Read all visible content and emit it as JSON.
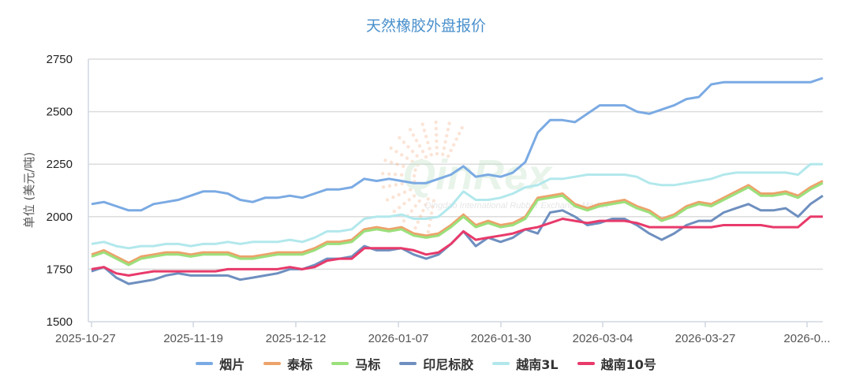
{
  "title": "天然橡胶外盘报价",
  "chart_data": {
    "type": "line",
    "title": "天然橡胶外盘报价",
    "xlabel": "",
    "ylabel": "单位 (美元/吨)",
    "ylim": [
      1500,
      2750
    ],
    "yticks": [
      1500,
      1750,
      2000,
      2250,
      2500,
      2750
    ],
    "grid": true,
    "legend_position": "bottom",
    "x_tick_labels": [
      "2025-10-27",
      "2025-11-19",
      "2025-12-12",
      "2026-01-07",
      "2026-01-30",
      "2026-03-04",
      "2026-03-27",
      "2026-0..."
    ],
    "x_points": 60,
    "series": [
      {
        "name": "烟片",
        "color": "#7aaae3",
        "values": [
          2060,
          2070,
          2050,
          2030,
          2030,
          2060,
          2070,
          2080,
          2100,
          2120,
          2120,
          2110,
          2080,
          2070,
          2090,
          2090,
          2100,
          2090,
          2110,
          2130,
          2130,
          2140,
          2180,
          2170,
          2180,
          2170,
          2160,
          2160,
          2180,
          2200,
          2240,
          2190,
          2200,
          2190,
          2210,
          2260,
          2400,
          2460,
          2460,
          2450,
          2490,
          2530,
          2530,
          2530,
          2500,
          2490,
          2510,
          2530,
          2560,
          2570,
          2630,
          2640,
          2640,
          2640,
          2640,
          2640,
          2640,
          2640,
          2640,
          2660
        ]
      },
      {
        "name": "泰标",
        "color": "#eda26b",
        "values": [
          1820,
          1840,
          1810,
          1780,
          1810,
          1820,
          1830,
          1830,
          1820,
          1830,
          1830,
          1830,
          1810,
          1810,
          1820,
          1830,
          1830,
          1830,
          1850,
          1880,
          1880,
          1890,
          1940,
          1950,
          1940,
          1950,
          1920,
          1910,
          1920,
          1960,
          2010,
          1960,
          1980,
          1960,
          1970,
          2000,
          2090,
          2100,
          2110,
          2060,
          2040,
          2060,
          2070,
          2080,
          2050,
          2030,
          1990,
          2010,
          2050,
          2070,
          2060,
          2090,
          2120,
          2150,
          2110,
          2110,
          2120,
          2100,
          2140,
          2170
        ]
      },
      {
        "name": "马标",
        "color": "#9be07c",
        "values": [
          1810,
          1830,
          1800,
          1770,
          1800,
          1810,
          1820,
          1820,
          1810,
          1820,
          1820,
          1820,
          1800,
          1800,
          1810,
          1820,
          1820,
          1820,
          1840,
          1870,
          1870,
          1880,
          1930,
          1940,
          1930,
          1940,
          1910,
          1900,
          1910,
          1950,
          2000,
          1950,
          1970,
          1950,
          1960,
          1990,
          2080,
          2090,
          2100,
          2050,
          2030,
          2050,
          2060,
          2070,
          2040,
          2020,
          1980,
          2000,
          2040,
          2060,
          2050,
          2080,
          2110,
          2140,
          2100,
          2100,
          2110,
          2090,
          2130,
          2160
        ]
      },
      {
        "name": "印尼标胶",
        "color": "#6e8fbf",
        "values": [
          1740,
          1760,
          1710,
          1680,
          1690,
          1700,
          1720,
          1730,
          1720,
          1720,
          1720,
          1720,
          1700,
          1710,
          1720,
          1730,
          1750,
          1750,
          1770,
          1800,
          1800,
          1810,
          1860,
          1840,
          1840,
          1850,
          1820,
          1800,
          1820,
          1870,
          1930,
          1860,
          1900,
          1880,
          1900,
          1940,
          1920,
          2020,
          2030,
          2000,
          1960,
          1970,
          1990,
          1990,
          1960,
          1920,
          1890,
          1920,
          1960,
          1980,
          1980,
          2020,
          2040,
          2060,
          2030,
          2030,
          2040,
          2000,
          2060,
          2100
        ]
      },
      {
        "name": "越南3L",
        "color": "#b2e8ec",
        "values": [
          1870,
          1880,
          1860,
          1850,
          1860,
          1860,
          1870,
          1870,
          1860,
          1870,
          1870,
          1880,
          1870,
          1880,
          1880,
          1880,
          1890,
          1880,
          1900,
          1930,
          1930,
          1940,
          1990,
          2000,
          2000,
          2010,
          1990,
          1990,
          2000,
          2050,
          2120,
          2080,
          2080,
          2090,
          2110,
          2140,
          2150,
          2180,
          2180,
          2190,
          2200,
          2200,
          2200,
          2200,
          2190,
          2160,
          2150,
          2150,
          2160,
          2170,
          2180,
          2200,
          2210,
          2210,
          2210,
          2210,
          2210,
          2200,
          2250,
          2250
        ]
      },
      {
        "name": "越南10号",
        "color": "#e83a6a",
        "values": [
          1750,
          1760,
          1730,
          1720,
          1730,
          1740,
          1740,
          1740,
          1740,
          1740,
          1740,
          1750,
          1750,
          1750,
          1750,
          1750,
          1760,
          1750,
          1760,
          1790,
          1800,
          1800,
          1850,
          1850,
          1850,
          1850,
          1840,
          1820,
          1830,
          1870,
          1930,
          1890,
          1900,
          1910,
          1920,
          1940,
          1950,
          1970,
          1990,
          1980,
          1970,
          1980,
          1980,
          1980,
          1970,
          1950,
          1950,
          1950,
          1950,
          1950,
          1950,
          1960,
          1960,
          1960,
          1960,
          1950,
          1950,
          1950,
          2000,
          2000
        ]
      }
    ]
  },
  "legend": [
    {
      "label": "烟片",
      "color": "#7aaae3"
    },
    {
      "label": "泰标",
      "color": "#eda26b"
    },
    {
      "label": "马标",
      "color": "#9be07c"
    },
    {
      "label": "印尼标胶",
      "color": "#6e8fbf"
    },
    {
      "label": "越南3L",
      "color": "#b2e8ec"
    },
    {
      "label": "越南10号",
      "color": "#e83a6a"
    }
  ],
  "watermark": {
    "brand": "QinRex",
    "subtitle": "Qingdao International Rubber Exchange Market"
  }
}
